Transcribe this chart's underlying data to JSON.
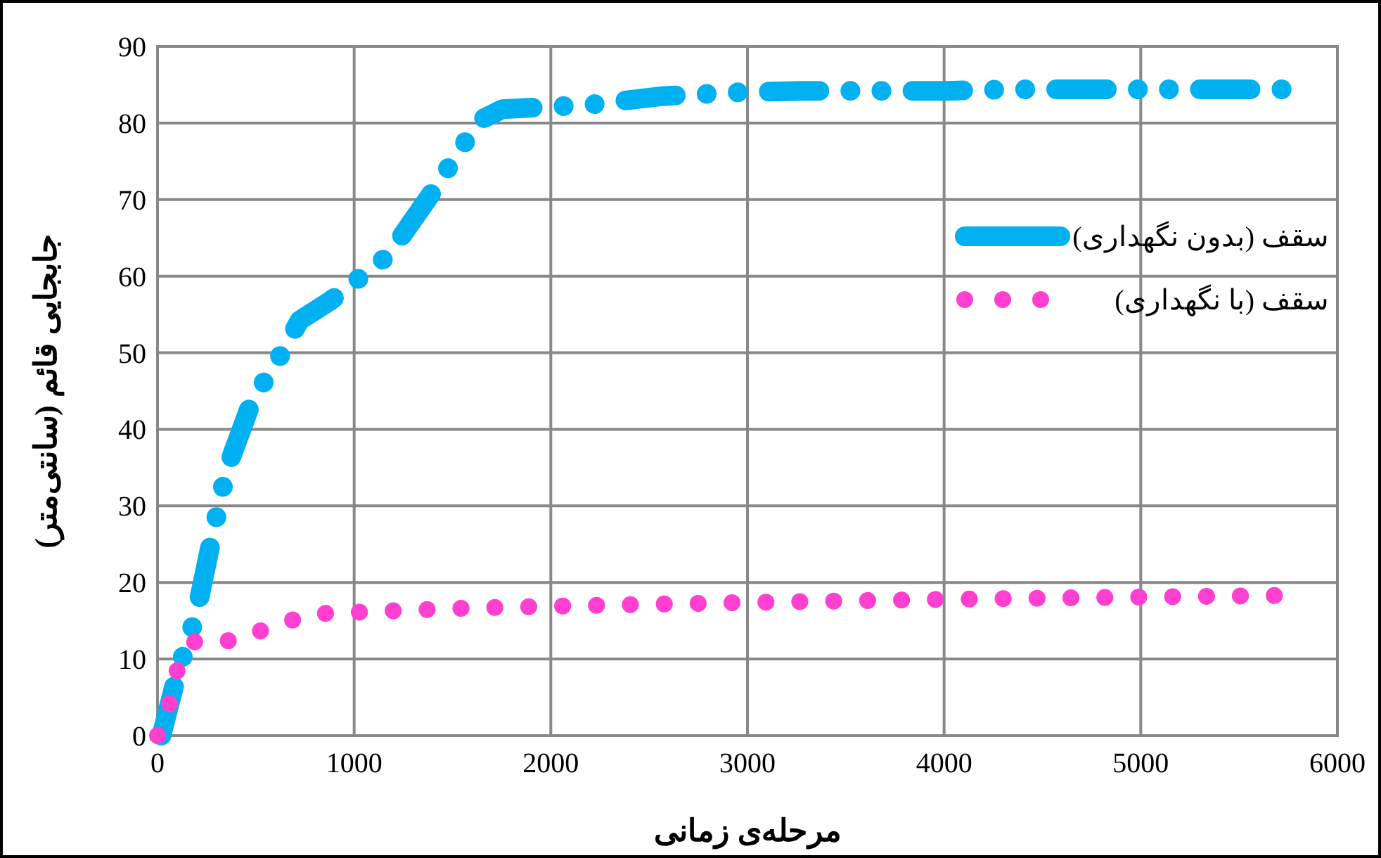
{
  "chart_data": {
    "type": "line",
    "xlabel": "مرحله‌ی زمانی",
    "ylabel": "جابجایی قائم (سانتی‌متر)",
    "xlim": [
      0,
      6000
    ],
    "xticks": [
      0,
      1000,
      2000,
      3000,
      4000,
      5000,
      6000
    ],
    "ylim": [
      0,
      90
    ],
    "yticks": [
      0,
      10,
      20,
      30,
      40,
      50,
      60,
      70,
      80,
      90
    ],
    "grid": true,
    "legend": "right",
    "marker": "none",
    "series": [
      {
        "name": "سقف (بدون نگهداری)",
        "color": "#00b0f0",
        "line_style": "dashed",
        "x": [
          20,
          100,
          193,
          272,
          350,
          479,
          629,
          722,
          880,
          1173,
          1388,
          1595,
          1650,
          1753,
          2203,
          2561,
          2940,
          3276,
          4006,
          4349,
          4728,
          5064,
          5758
        ],
        "values": [
          0,
          8,
          15.5,
          25.2,
          34.6,
          43.6,
          49.8,
          54.2,
          56.8,
          62.7,
          70.6,
          78.7,
          80.5,
          81.8,
          82.4,
          83.5,
          84.0,
          84.2,
          84.2,
          84.4,
          84.4,
          84.4,
          84.4
        ]
      },
      {
        "name": "سقف (با نگهداری)",
        "color": "#ff3fcf",
        "line_style": "dotted",
        "x": [
          0,
          60,
          100,
          190,
          380,
          560,
          780,
          1000,
          1500,
          2000,
          3000,
          4000,
          5000,
          5720
        ],
        "values": [
          0,
          4,
          8.5,
          12.3,
          12.4,
          14.0,
          15.9,
          16.1,
          16.6,
          16.9,
          17.4,
          17.8,
          18.1,
          18.3
        ]
      }
    ]
  }
}
